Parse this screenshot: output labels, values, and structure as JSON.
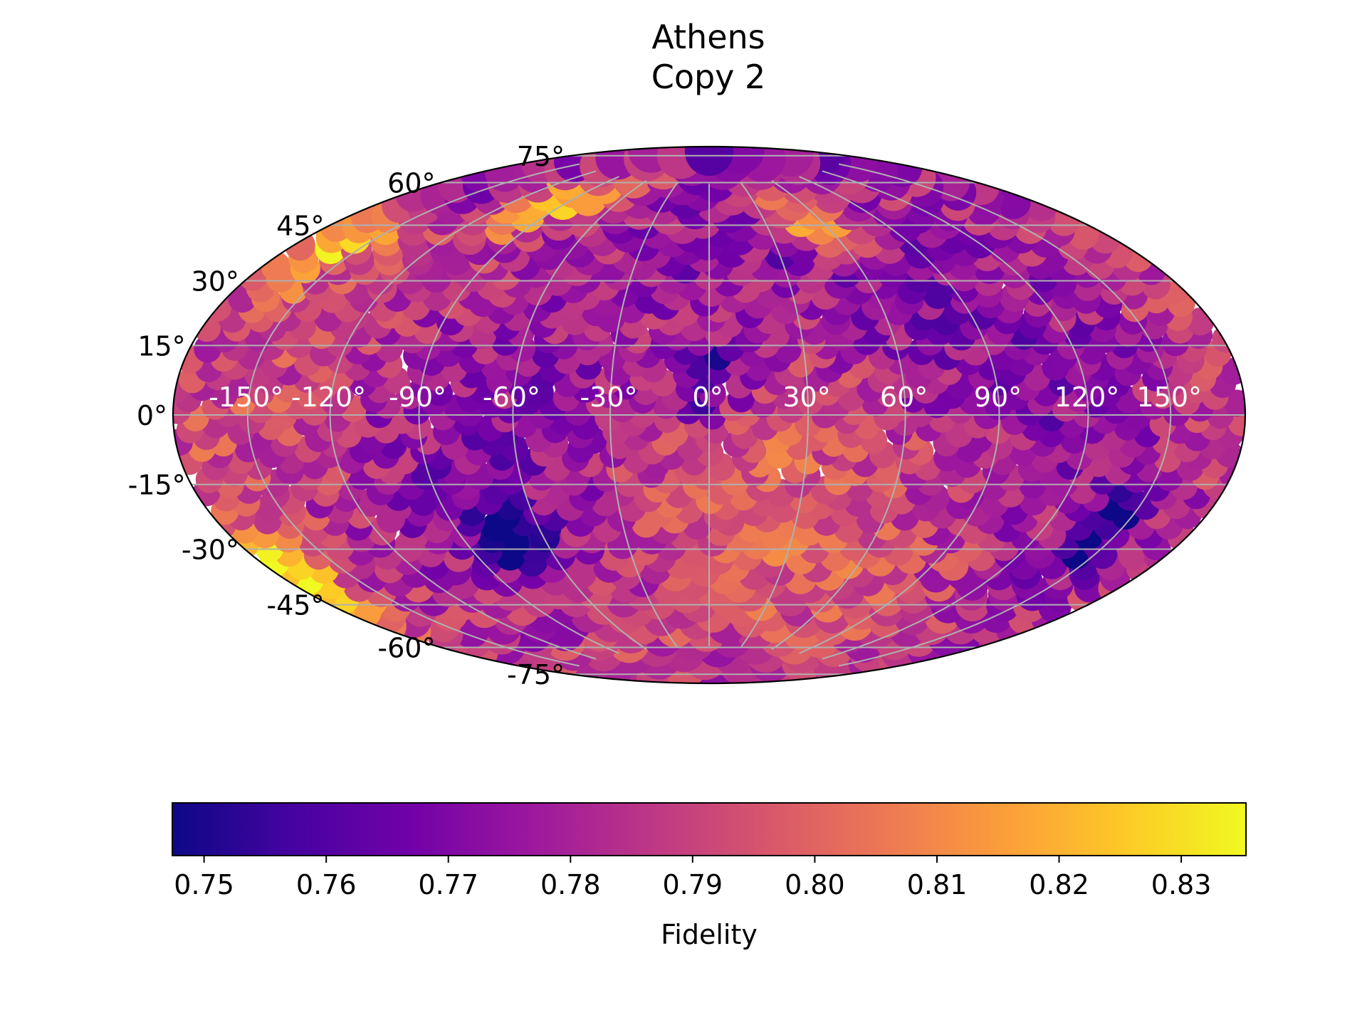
{
  "chart_data": {
    "type": "heatmap",
    "projection": "hammer",
    "title_lines": [
      "Athens",
      "Copy 2"
    ],
    "lat_ticks": [
      "75°",
      "60°",
      "45°",
      "30°",
      "15°",
      "0°",
      "-15°",
      "-30°",
      "-45°",
      "-60°",
      "-75°"
    ],
    "lat_values": [
      75,
      60,
      45,
      30,
      15,
      0,
      -15,
      -30,
      -45,
      -60,
      -75
    ],
    "lon_ticks": [
      "-150°",
      "-120°",
      "-90°",
      "-60°",
      "-30°",
      "0°",
      "30°",
      "60°",
      "90°",
      "120°",
      "150°"
    ],
    "lon_values": [
      -150,
      -120,
      -90,
      -60,
      -30,
      0,
      30,
      60,
      90,
      120,
      150
    ],
    "grid": true,
    "grid_color": "#b0b0b0",
    "colormap": "plasma",
    "colorbar": {
      "label": "Fidelity",
      "orientation": "horizontal",
      "location": "bottom",
      "range": [
        0.7474,
        0.8353
      ],
      "ticks": [
        "0.75",
        "0.76",
        "0.77",
        "0.78",
        "0.79",
        "0.80",
        "0.81",
        "0.82",
        "0.83"
      ],
      "tick_values": [
        0.75,
        0.76,
        0.77,
        0.78,
        0.79,
        0.8,
        0.81,
        0.82,
        0.83
      ]
    },
    "value_range": [
      0.7474,
      0.8353
    ],
    "marker": "filled circles covering the whole sphere (approx. 1500 scattered points)",
    "notable_values": [
      {
        "lon": -170,
        "lat": -37,
        "value": 0.835
      },
      {
        "lon": -165,
        "lat": 42,
        "value": 0.835
      },
      {
        "lon": -110,
        "lat": 65,
        "value": 0.833
      },
      {
        "lon": 60,
        "lat": 63,
        "value": 0.833
      },
      {
        "lon": 0,
        "lat": 12,
        "value": 0.751
      },
      {
        "lon": -70,
        "lat": -35,
        "value": 0.749
      },
      {
        "lon": 140,
        "lat": -30,
        "value": 0.752
      }
    ],
    "colors": {
      "stops": [
        "#0d0887",
        "#46039f",
        "#7201a8",
        "#9c179e",
        "#bd3786",
        "#d8576b",
        "#ed7953",
        "#fb9f3a",
        "#fdca26",
        "#f0f921"
      ]
    }
  }
}
